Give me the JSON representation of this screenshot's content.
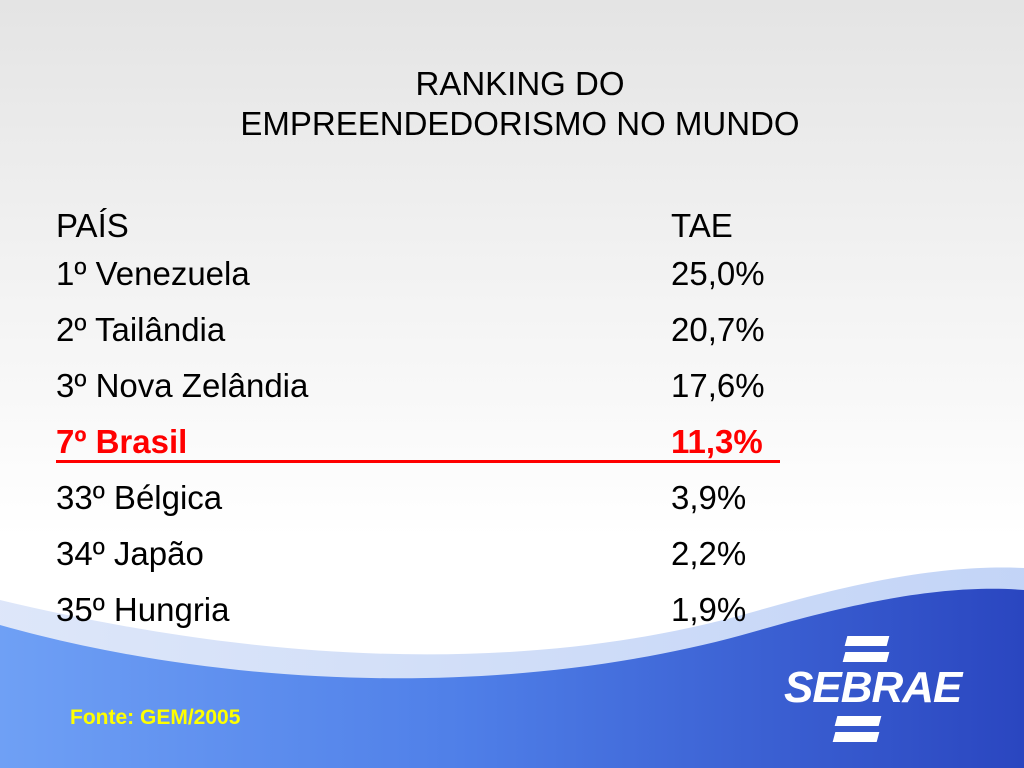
{
  "title": {
    "line1": "RANKING DO",
    "line2": "EMPREENDEDORISMO NO MUNDO"
  },
  "table": {
    "headers": {
      "country": "PAÍS",
      "tae": "TAE"
    },
    "rows": [
      {
        "country": "1º Venezuela",
        "tae": "25,0%"
      },
      {
        "country": "2º Tailândia",
        "tae": "20,7%"
      },
      {
        "country": "3º Nova Zelândia",
        "tae": "17,6%"
      },
      {
        "country": "7º Brasil",
        "tae": "11,3%",
        "highlight": true
      },
      {
        "country": "33º Bélgica",
        "tae": "3,9%"
      },
      {
        "country": "34º Japão",
        "tae": "2,2%"
      },
      {
        "country": "35º Hungria",
        "tae": "1,9%"
      }
    ]
  },
  "source": "Fonte: GEM/2005",
  "logo": {
    "text": "SEBRAE"
  },
  "colors": {
    "highlight": "#ff0000",
    "source_text": "#ffff00",
    "wave_dark": "#2a4fc8",
    "wave_light": "#6f9ff5"
  }
}
